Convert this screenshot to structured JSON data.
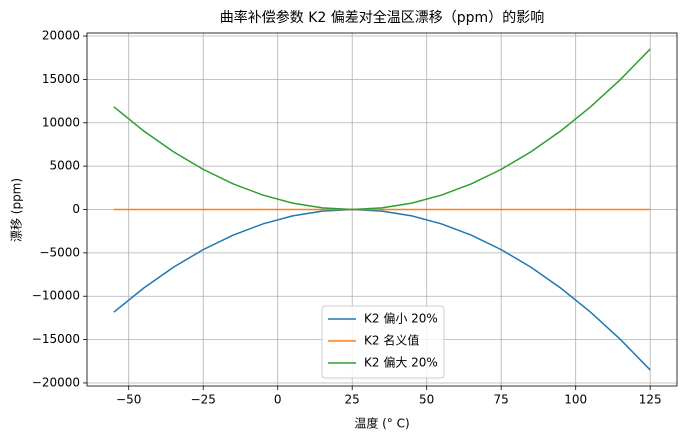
{
  "chart_data": {
    "type": "line",
    "title": "曲率补偿参数 K2 偏差对全温区漂移（ppm）的影响",
    "x_label": "温度 (° C)",
    "y_label": "漂移 (ppm)",
    "x": [
      -55,
      -45,
      -35,
      -25,
      -15,
      -5,
      5,
      15,
      25,
      35,
      45,
      55,
      65,
      75,
      85,
      95,
      105,
      115,
      125
    ],
    "series": [
      {
        "name": "K2 偏小 20%",
        "color": "#1f77b4",
        "values": [
          -11840,
          -9065,
          -6660,
          -4625,
          -2960,
          -1665,
          -740,
          -185,
          0,
          -185,
          -740,
          -1665,
          -2960,
          -4625,
          -6660,
          -9065,
          -11840,
          -14985,
          -18500
        ]
      },
      {
        "name": "K2 名义值",
        "color": "#ff7f0e",
        "values": [
          0,
          0,
          0,
          0,
          0,
          0,
          0,
          0,
          0,
          0,
          0,
          0,
          0,
          0,
          0,
          0,
          0,
          0,
          0
        ]
      },
      {
        "name": "K2 偏大 20%",
        "color": "#2ca02c",
        "values": [
          11840,
          9065,
          6660,
          4625,
          2960,
          1665,
          740,
          185,
          0,
          185,
          740,
          1665,
          2960,
          4625,
          6660,
          9065,
          11840,
          14985,
          18500
        ]
      }
    ],
    "xlim": [
      -64,
      134
    ],
    "xticks": [
      {
        "value": -50,
        "label": "−50"
      },
      {
        "value": -25,
        "label": "−25"
      },
      0,
      25,
      50,
      75,
      100,
      125
    ],
    "ylim": [
      -20350,
      20350
    ],
    "yticks": [
      {
        "value": -20000,
        "label": "−20000"
      },
      {
        "value": -15000,
        "label": "−15000"
      },
      {
        "value": -10000,
        "label": "−10000"
      },
      {
        "value": -5000,
        "label": "−5000"
      },
      0,
      5000,
      10000,
      15000,
      20000
    ],
    "grid": true,
    "legend": "lower center"
  }
}
